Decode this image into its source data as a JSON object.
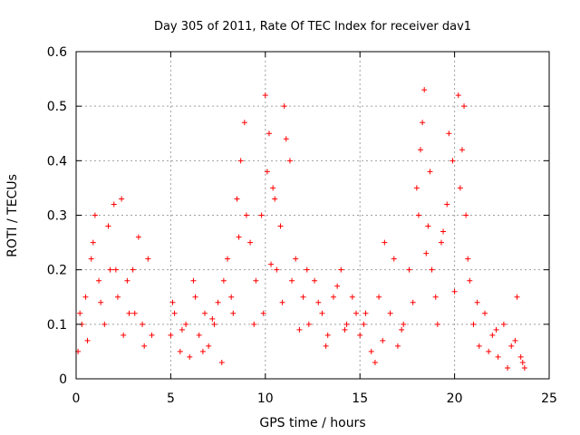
{
  "chart_data": {
    "type": "scatter",
    "title": "Day 305 of 2011, Rate Of TEC Index for receiver dav1",
    "xlabel": "GPS time / hours",
    "ylabel": "ROTI / TECUs",
    "xlim": [
      0,
      25
    ],
    "ylim": [
      0,
      0.6
    ],
    "xticks": [
      "0",
      "5",
      "10",
      "15",
      "20",
      "25"
    ],
    "yticks": [
      "0",
      "0.1",
      "0.2",
      "0.3",
      "0.4",
      "0.5",
      "0.6"
    ],
    "grid": true,
    "marker": "+",
    "color": "#ff0000",
    "series": [
      {
        "x": [
          0.1,
          0.3,
          0.5,
          0.8,
          1.0,
          1.2,
          1.5,
          1.8,
          2.0,
          2.2,
          2.5,
          2.8,
          3.0,
          3.3,
          3.5,
          3.8,
          4.0,
          5.0,
          5.2,
          5.5,
          5.8,
          6.0,
          6.3,
          6.5,
          6.8,
          7.0,
          7.3,
          7.5,
          7.8,
          8.0,
          8.3,
          8.5,
          8.7,
          8.9,
          9.2,
          9.5,
          9.8,
          10.0,
          10.2,
          10.4,
          10.6,
          10.8,
          11.0,
          11.3,
          11.6,
          12.0,
          12.3,
          12.6,
          13.0,
          13.3,
          13.6,
          14.0,
          14.3,
          14.6,
          15.0,
          15.3,
          15.6,
          16.0,
          16.3,
          16.6,
          17.0,
          17.3,
          17.6,
          18.0,
          18.2,
          18.4,
          18.6,
          18.8,
          19.0,
          19.3,
          19.6,
          19.9,
          20.2,
          20.4,
          20.6,
          20.8,
          21.0,
          21.3,
          21.6,
          22.0,
          22.3,
          22.6,
          23.0,
          23.3,
          23.6,
          0.2,
          0.6,
          0.9,
          1.3,
          1.7,
          2.1,
          2.4,
          2.7,
          3.1,
          3.6,
          5.1,
          5.6,
          6.2,
          6.7,
          7.2,
          7.7,
          8.2,
          8.6,
          9.0,
          9.4,
          9.9,
          10.1,
          10.3,
          10.5,
          10.9,
          11.1,
          11.4,
          11.8,
          12.2,
          12.8,
          13.2,
          13.8,
          14.2,
          14.8,
          15.2,
          15.8,
          16.2,
          16.8,
          17.2,
          17.8,
          18.1,
          18.3,
          18.5,
          18.7,
          19.1,
          19.4,
          19.7,
          20.0,
          20.3,
          20.5,
          20.7,
          21.2,
          21.8,
          22.2,
          22.8,
          23.2,
          23.5,
          23.7
        ],
        "y": [
          0.05,
          0.1,
          0.15,
          0.22,
          0.3,
          0.18,
          0.1,
          0.2,
          0.32,
          0.15,
          0.08,
          0.12,
          0.2,
          0.26,
          0.1,
          0.22,
          0.08,
          0.08,
          0.12,
          0.05,
          0.1,
          0.04,
          0.15,
          0.08,
          0.12,
          0.06,
          0.1,
          0.14,
          0.18,
          0.22,
          0.12,
          0.33,
          0.4,
          0.47,
          0.25,
          0.18,
          0.3,
          0.52,
          0.45,
          0.35,
          0.2,
          0.28,
          0.5,
          0.4,
          0.22,
          0.15,
          0.1,
          0.18,
          0.12,
          0.08,
          0.15,
          0.2,
          0.1,
          0.15,
          0.08,
          0.12,
          0.05,
          0.15,
          0.25,
          0.12,
          0.06,
          0.1,
          0.2,
          0.35,
          0.42,
          0.53,
          0.28,
          0.2,
          0.15,
          0.25,
          0.32,
          0.4,
          0.52,
          0.42,
          0.3,
          0.18,
          0.1,
          0.06,
          0.12,
          0.08,
          0.04,
          0.1,
          0.06,
          0.15,
          0.03,
          0.12,
          0.07,
          0.25,
          0.14,
          0.28,
          0.2,
          0.33,
          0.18,
          0.12,
          0.06,
          0.14,
          0.09,
          0.18,
          0.05,
          0.11,
          0.03,
          0.15,
          0.26,
          0.3,
          0.1,
          0.12,
          0.38,
          0.21,
          0.33,
          0.14,
          0.44,
          0.18,
          0.09,
          0.2,
          0.14,
          0.06,
          0.17,
          0.09,
          0.12,
          0.1,
          0.03,
          0.07,
          0.22,
          0.09,
          0.14,
          0.3,
          0.47,
          0.23,
          0.38,
          0.1,
          0.27,
          0.45,
          0.16,
          0.35,
          0.5,
          0.22,
          0.14,
          0.05,
          0.09,
          0.02,
          0.07,
          0.04,
          0.02
        ]
      }
    ]
  }
}
